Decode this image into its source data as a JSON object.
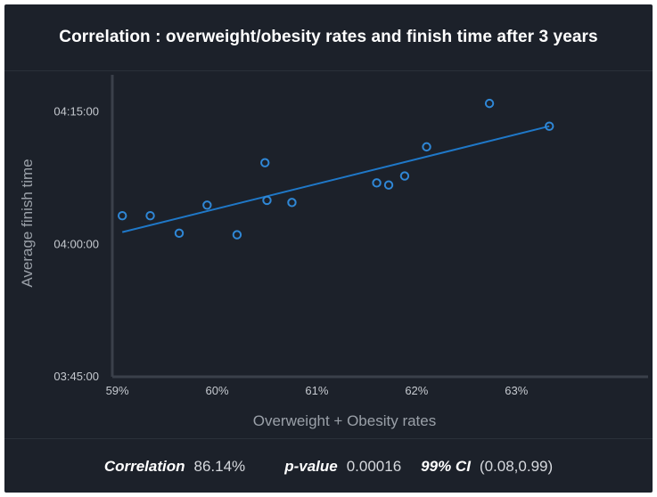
{
  "title": "Correlation : overweight/obesity rates and finish time after 3 years",
  "chart_data": {
    "type": "scatter",
    "xlabel": "Overweight + Obesity rates",
    "ylabel": "Average finish time",
    "x_ticks": [
      "59%",
      "60%",
      "61%",
      "62%",
      "63%"
    ],
    "y_ticks": [
      "04:15:00",
      "04:00:00",
      "03:45:00"
    ],
    "xlim": [
      58.95,
      64.32
    ],
    "ylim": [
      3.75,
      4.32
    ],
    "points": [
      {
        "x": 59.05,
        "y": 4.054
      },
      {
        "x": 59.33,
        "y": 4.054
      },
      {
        "x": 59.62,
        "y": 4.021
      },
      {
        "x": 59.9,
        "y": 4.074
      },
      {
        "x": 60.2,
        "y": 4.018
      },
      {
        "x": 60.48,
        "y": 4.154
      },
      {
        "x": 60.5,
        "y": 4.083
      },
      {
        "x": 60.75,
        "y": 4.079
      },
      {
        "x": 61.6,
        "y": 4.116
      },
      {
        "x": 61.72,
        "y": 4.112
      },
      {
        "x": 61.88,
        "y": 4.129
      },
      {
        "x": 62.1,
        "y": 4.184
      },
      {
        "x": 62.73,
        "y": 4.266
      },
      {
        "x": 63.33,
        "y": 4.223
      }
    ],
    "trendline": {
      "x": [
        59.05,
        63.33
      ],
      "y": [
        4.023,
        4.223
      ]
    },
    "colors": {
      "point": "#2f87d6",
      "line": "#1f78c8",
      "axis": "#3a404a",
      "tick_text": "#c5c9cf",
      "label_text": "#9aa0a8"
    }
  },
  "stats": {
    "correlation_label": "Correlation",
    "correlation_value": "86.14%",
    "pvalue_label": "p-value",
    "pvalue_value": "0.00016",
    "ci_label": "99% CI",
    "ci_value": "(0.08,0.99)"
  }
}
